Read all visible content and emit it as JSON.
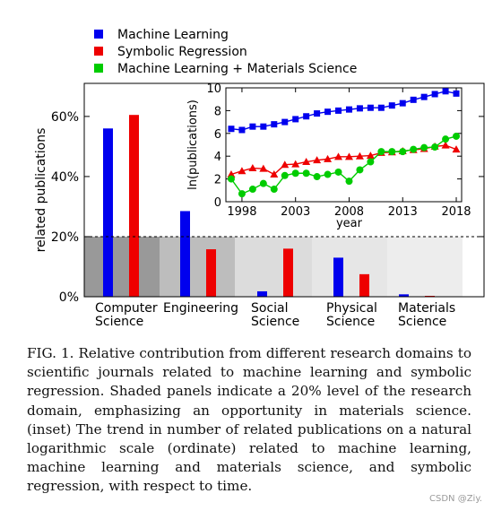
{
  "chart_data": [
    {
      "type": "bar",
      "categories": [
        [
          "Computer",
          "Science"
        ],
        [
          "Engineering"
        ],
        [
          "Social",
          "Science"
        ],
        [
          "Physical",
          "Science"
        ],
        [
          "Materials",
          "Science"
        ]
      ],
      "series": [
        {
          "name": "Machine Learning",
          "color": "#0000ee",
          "values": [
            56,
            28.5,
            1.8,
            13,
            0.8
          ]
        },
        {
          "name": "Symbolic Regression",
          "color": "#ee0000",
          "values": [
            60.5,
            15.8,
            16,
            7.5,
            0.3
          ]
        },
        {
          "name": "Machine Learning + Materials Science",
          "color": "#00cc00",
          "values": [
            null,
            null,
            null,
            null,
            null
          ]
        }
      ],
      "ylabel": "related publications",
      "yticks": [
        "0%",
        "20%",
        "40%",
        "60%"
      ],
      "ylim": [
        0,
        71
      ],
      "reference_line": 20,
      "panel_shades": [
        "#999999",
        "#bdbdbd",
        "#dcdcdc",
        "#e6e6e6",
        "#ededed"
      ],
      "legend_position": "top-left, above plot"
    },
    {
      "type": "line",
      "inset": true,
      "xlabel": "year",
      "ylabel": "ln(publications)",
      "xlim": [
        1996.5,
        2018.5
      ],
      "ylim": [
        0,
        10
      ],
      "xticks": [
        1998,
        2003,
        2008,
        2013,
        2018
      ],
      "yticks": [
        0,
        2,
        4,
        6,
        8,
        10
      ],
      "series": [
        {
          "name": "Machine Learning",
          "color": "#0000ee",
          "marker": "square",
          "x": [
            1997,
            1998,
            1999,
            2000,
            2001,
            2002,
            2003,
            2004,
            2005,
            2006,
            2007,
            2008,
            2009,
            2010,
            2011,
            2012,
            2013,
            2014,
            2015,
            2016,
            2017,
            2018
          ],
          "y": [
            6.4,
            6.3,
            6.6,
            6.6,
            6.8,
            7.0,
            7.25,
            7.5,
            7.75,
            7.9,
            8.0,
            8.1,
            8.2,
            8.25,
            8.25,
            8.45,
            8.65,
            8.95,
            9.2,
            9.45,
            9.7,
            9.5
          ]
        },
        {
          "name": "Symbolic Regression",
          "color": "#ee0000",
          "marker": "triangle",
          "x": [
            1997,
            1998,
            1999,
            2000,
            2001,
            2002,
            2003,
            2004,
            2005,
            2006,
            2007,
            2008,
            2009,
            2010,
            2011,
            2012,
            2013,
            2014,
            2015,
            2016,
            2017,
            2018
          ],
          "y": [
            2.4,
            2.7,
            2.95,
            2.9,
            2.4,
            3.25,
            3.3,
            3.5,
            3.65,
            3.75,
            3.95,
            3.95,
            4.0,
            4.05,
            4.3,
            4.35,
            4.45,
            4.55,
            4.65,
            4.85,
            4.95,
            4.6
          ]
        },
        {
          "name": "Machine Learning + Materials Science",
          "color": "#00cc00",
          "marker": "circle",
          "x": [
            1997,
            1998,
            1999,
            2000,
            2001,
            2002,
            2003,
            2004,
            2005,
            2006,
            2007,
            2008,
            2009,
            2010,
            2011,
            2012,
            2013,
            2014,
            2015,
            2016,
            2017,
            2018
          ],
          "y": [
            2.0,
            0.7,
            1.1,
            1.6,
            1.1,
            2.3,
            2.5,
            2.5,
            2.2,
            2.4,
            2.6,
            1.8,
            2.8,
            3.5,
            4.4,
            4.4,
            4.4,
            4.6,
            4.75,
            4.8,
            5.5,
            5.75
          ]
        }
      ]
    }
  ],
  "caption": "FIG. 1. Relative contribution from different research domains to scientific journals related to machine learning and symbolic regression. Shaded panels indicate a 20% level of the research domain, emphasizing an opportunity in materials science. (inset) The trend in number of related publications on a natural logarithmic scale (ordinate) related to machine learning, machine learning and materials science, and symbolic regression, with respect to time.",
  "watermark": "CSDN @Ziy."
}
